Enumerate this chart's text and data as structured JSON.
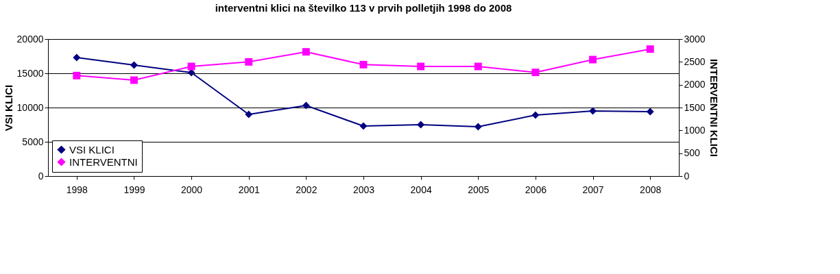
{
  "chart_data": {
    "type": "line",
    "title": "interventni klici na številko 113 v prvih polletjih 1998 do 2008",
    "categories": [
      "1998",
      "1999",
      "2000",
      "2001",
      "2002",
      "2003",
      "2004",
      "2005",
      "2006",
      "2007",
      "2008"
    ],
    "ylabel": "VSI KLICI",
    "y2label": "INTERVENTNI KLICI",
    "ylim": [
      0,
      20000
    ],
    "yticks": [
      0,
      5000,
      10000,
      15000,
      20000
    ],
    "y2lim": [
      0,
      3000
    ],
    "y2ticks": [
      0,
      500,
      1000,
      1500,
      2000,
      2500,
      3000
    ],
    "grid": "y",
    "legend": "bottom left",
    "series": [
      {
        "name": "VSI KLICI",
        "color": "#000080",
        "marker": "diamond",
        "values": [
          17300,
          16200,
          15100,
          9000,
          10300,
          7300,
          7500,
          7200,
          8900,
          9500,
          9400
        ]
      },
      {
        "name": "INTERVENTNI",
        "color": "#ff00ff",
        "marker": "square",
        "axis": "y2",
        "values": [
          2200,
          2100,
          2400,
          2500,
          2720,
          2440,
          2400,
          2400,
          2270,
          2550,
          2780
        ]
      }
    ]
  }
}
